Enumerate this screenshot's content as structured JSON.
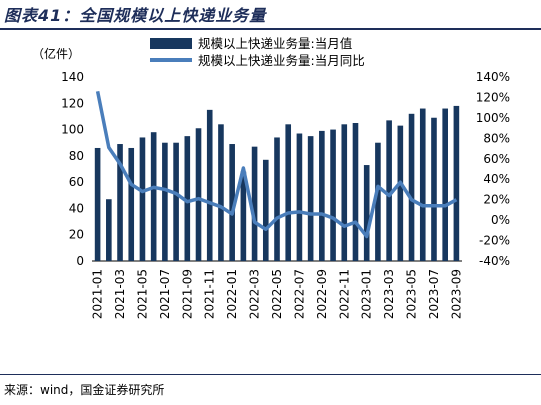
{
  "title": "图表41：全国规模以上快递业务量",
  "source": "来源：wind，国金证券研究所",
  "chart_data": {
    "type": "bar",
    "y_unit_label": "（亿件）",
    "categories": [
      "2021-01",
      "2021-02",
      "2021-03",
      "2021-04",
      "2021-05",
      "2021-06",
      "2021-07",
      "2021-08",
      "2021-09",
      "2021-10",
      "2021-11",
      "2021-12",
      "2022-01",
      "2022-02",
      "2022-03",
      "2022-04",
      "2022-05",
      "2022-06",
      "2022-07",
      "2022-08",
      "2022-09",
      "2022-10",
      "2022-11",
      "2022-12",
      "2023-01",
      "2023-02",
      "2023-03",
      "2023-04",
      "2023-05",
      "2023-06",
      "2023-07",
      "2023-08",
      "2023-09"
    ],
    "x_tick_labels": [
      "2021-01",
      "2021-03",
      "2021-05",
      "2021-07",
      "2021-09",
      "2021-11",
      "2022-01",
      "2022-03",
      "2022-05",
      "2022-07",
      "2022-09",
      "2022-11",
      "2023-01",
      "2023-03",
      "2023-05",
      "2023-07",
      "2023-09"
    ],
    "series": [
      {
        "name": "规模以上快递业务量:当月值",
        "type": "bar",
        "axis": "left",
        "color": "#17375e",
        "values": [
          86,
          47,
          89,
          86,
          94,
          98,
          90,
          90,
          95,
          101,
          115,
          104,
          89,
          68,
          87,
          77,
          94,
          104,
          97,
          95,
          99,
          100,
          104,
          105,
          73,
          90,
          107,
          103,
          112,
          116,
          109,
          116,
          118
        ]
      },
      {
        "name": "规模以上快递业务量:当月同比",
        "type": "line",
        "axis": "right",
        "color": "#4a7ebb",
        "values": [
          126,
          71,
          55,
          35,
          28,
          32,
          30,
          26,
          18,
          21,
          17,
          13,
          6,
          51,
          -2,
          -9,
          2,
          7,
          8,
          6,
          6,
          2,
          -6,
          -2,
          -16,
          33,
          24,
          37,
          20,
          14,
          14,
          14,
          20
        ]
      }
    ],
    "y_left": {
      "min": 0,
      "max": 140,
      "ticks": [
        0,
        20,
        40,
        60,
        80,
        100,
        120,
        140
      ]
    },
    "y_right": {
      "min": -40,
      "max": 140,
      "ticks": [
        -40,
        -20,
        0,
        20,
        40,
        60,
        80,
        100,
        120,
        140
      ],
      "format": "percent"
    },
    "legend_position": "top",
    "grid": false
  }
}
